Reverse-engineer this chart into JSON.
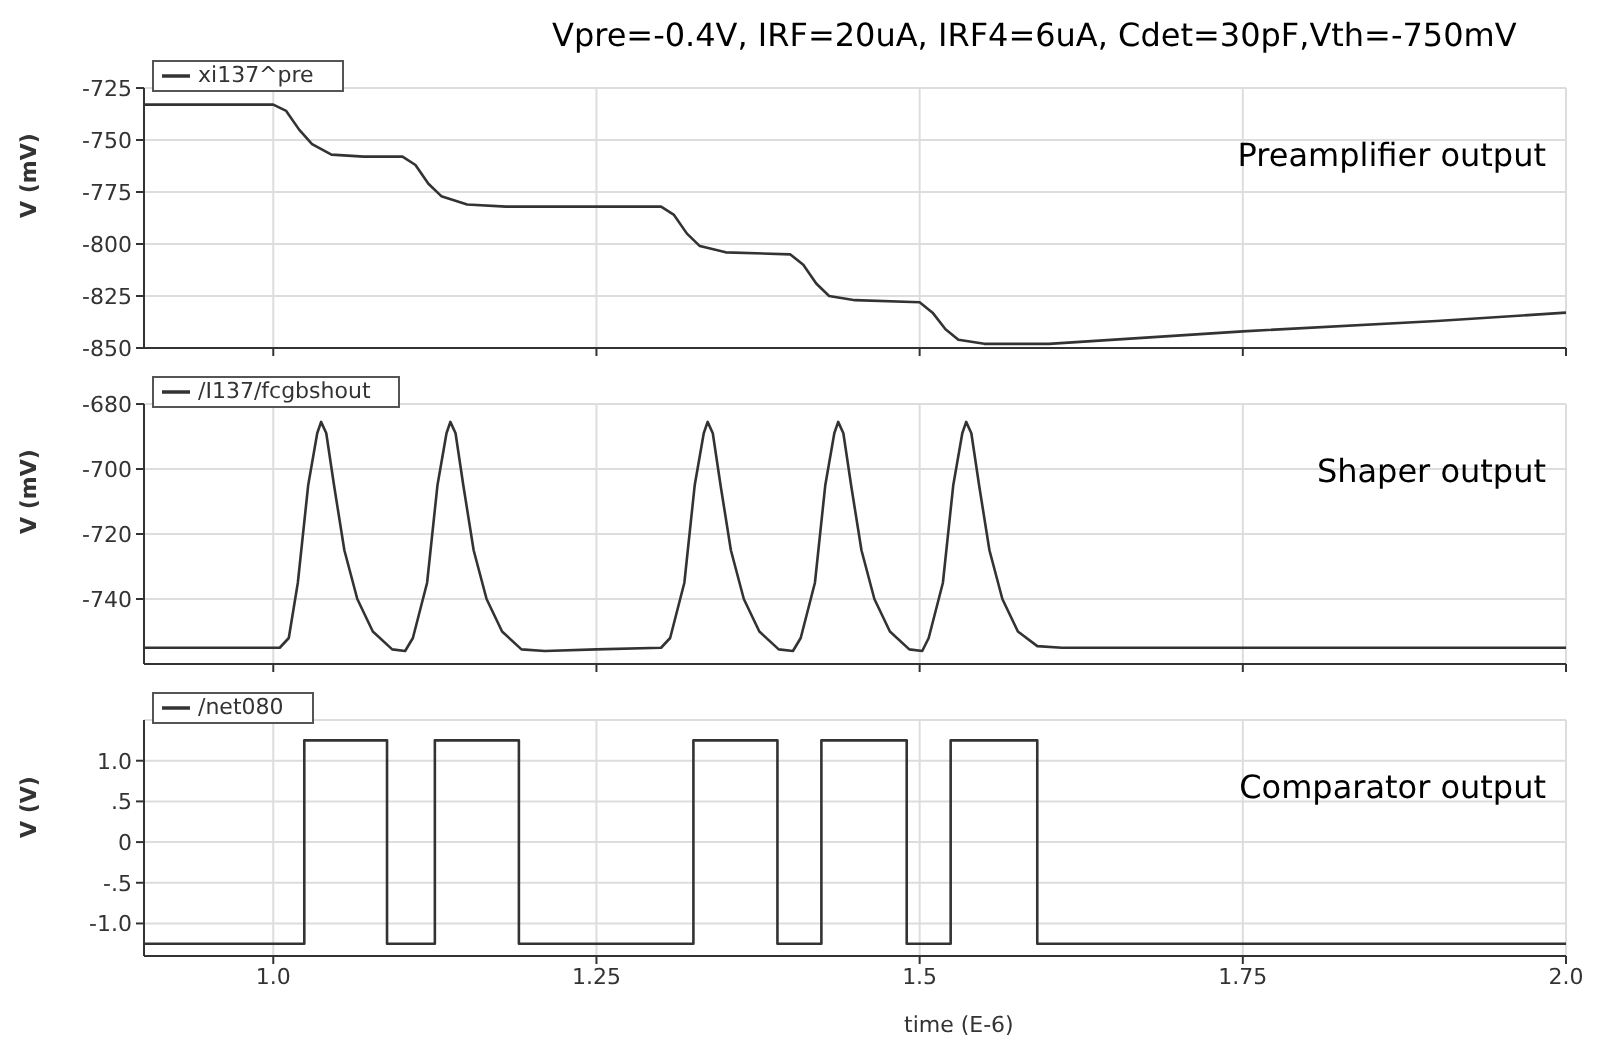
{
  "chart_data": [
    {
      "type": "line",
      "title": "Vpre=-0.4V, IRF=20uA, IRF4=6uA, Cdet=30pF,Vth=-750mV",
      "ylabel": "V (mV)",
      "annotations": [
        "Preamplifier output"
      ],
      "xlim": [
        0.9,
        2.0
      ],
      "xticks": [
        1,
        1.25,
        1.5,
        1.75,
        2
      ],
      "ylim": [
        -850,
        -725
      ],
      "yticks": [
        -850,
        -825,
        -800,
        -775,
        -750,
        -725
      ],
      "grid": true,
      "legend": "top left",
      "tick_labels": "y",
      "series": [
        {
          "name": "xi137^pre",
          "color": "#333333",
          "x": [
            0.9,
            1.0,
            1.01,
            1.02,
            1.03,
            1.045,
            1.07,
            1.1,
            1.11,
            1.12,
            1.13,
            1.15,
            1.18,
            1.3,
            1.31,
            1.32,
            1.33,
            1.35,
            1.4,
            1.41,
            1.42,
            1.43,
            1.45,
            1.5,
            1.51,
            1.52,
            1.53,
            1.55,
            1.6,
            1.75,
            1.9,
            2.0
          ],
          "values": [
            -733,
            -733,
            -736,
            -745,
            -752,
            -757,
            -758,
            -758,
            -762,
            -771,
            -777,
            -781,
            -782,
            -782,
            -786,
            -795,
            -801,
            -804,
            -805,
            -810,
            -819,
            -825,
            -827,
            -828,
            -833,
            -841,
            -846,
            -848,
            -848,
            -842,
            -837,
            -833
          ]
        }
      ]
    },
    {
      "type": "line",
      "ylabel": "V (mV)",
      "annotations": [
        "Shaper output"
      ],
      "xlim": [
        0.9,
        2.0
      ],
      "xticks": [
        1,
        1.25,
        1.5,
        1.75,
        2
      ],
      "ylim": [
        -760,
        -680
      ],
      "yticks": [
        -740,
        -720,
        -700,
        -680
      ],
      "grid": true,
      "legend": "top left",
      "tick_labels": "y",
      "series": [
        {
          "name": "/I137/fcgbshout",
          "color": "#333333",
          "x": [
            0.9,
            1.005,
            1.012,
            1.019,
            1.027,
            1.034,
            1.037,
            1.041,
            1.047,
            1.055,
            1.065,
            1.077,
            1.092,
            1.102,
            1.108,
            1.119,
            1.127,
            1.134,
            1.137,
            1.141,
            1.147,
            1.155,
            1.165,
            1.177,
            1.192,
            1.21,
            1.25,
            1.3,
            1.307,
            1.318,
            1.326,
            1.333,
            1.336,
            1.34,
            1.346,
            1.354,
            1.364,
            1.376,
            1.391,
            1.402,
            1.408,
            1.419,
            1.427,
            1.434,
            1.437,
            1.441,
            1.447,
            1.455,
            1.465,
            1.477,
            1.492,
            1.502,
            1.507,
            1.518,
            1.526,
            1.533,
            1.536,
            1.54,
            1.546,
            1.554,
            1.564,
            1.576,
            1.591,
            1.61,
            2.0
          ],
          "values": [
            -755,
            -755,
            -752,
            -735,
            -705,
            -689,
            -685.5,
            -689,
            -705,
            -725,
            -740,
            -750,
            -755.5,
            -756,
            -752,
            -735,
            -705,
            -689,
            -685.5,
            -689,
            -705,
            -725,
            -740,
            -750,
            -755.5,
            -756,
            -755.5,
            -755,
            -752,
            -735,
            -705,
            -689,
            -685.5,
            -689,
            -705,
            -725,
            -740,
            -750,
            -755.5,
            -756,
            -752,
            -735,
            -705,
            -689,
            -685.5,
            -689,
            -705,
            -725,
            -740,
            -750,
            -755.5,
            -756,
            -752,
            -735,
            -705,
            -689,
            -685.5,
            -689,
            -705,
            -725,
            -740,
            -750,
            -754.5,
            -755,
            -755
          ]
        }
      ]
    },
    {
      "type": "line",
      "ylabel": "V (V)",
      "xlabel": "time (E-6)",
      "annotations": [
        "Comparator output"
      ],
      "xlim": [
        0.9,
        2.0
      ],
      "xticks": [
        {
          "value": 1,
          "label": "1.0"
        },
        1.25,
        1.5,
        1.75,
        {
          "value": 2,
          "label": "2.0"
        }
      ],
      "ylim": [
        -1.4,
        1.5
      ],
      "yticks": [
        {
          "value": -1,
          "label": "-1.0"
        },
        {
          "value": -0.5,
          "label": "-.5"
        },
        0,
        {
          "value": 0.5,
          "label": ".5"
        },
        {
          "value": 1,
          "label": "1.0"
        }
      ],
      "grid": true,
      "legend": "top left",
      "series": [
        {
          "name": "/net080",
          "color": "#333333",
          "x": [
            0.9,
            1.024,
            1.024,
            1.088,
            1.088,
            1.125,
            1.125,
            1.19,
            1.19,
            1.325,
            1.325,
            1.39,
            1.39,
            1.424,
            1.424,
            1.49,
            1.49,
            1.524,
            1.524,
            1.591,
            1.591,
            2.0
          ],
          "values": [
            -1.25,
            -1.25,
            1.25,
            1.25,
            -1.25,
            -1.25,
            1.25,
            1.25,
            -1.25,
            -1.25,
            1.25,
            1.25,
            -1.25,
            -1.25,
            1.25,
            1.25,
            -1.25,
            -1.25,
            1.25,
            1.25,
            -1.25,
            -1.25
          ]
        }
      ]
    }
  ]
}
